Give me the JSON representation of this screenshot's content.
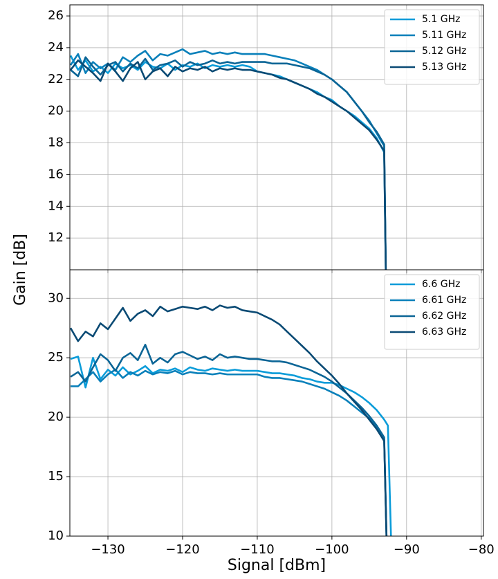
{
  "chart_data": [
    {
      "type": "line",
      "ylabel": "Gain [dB]",
      "x": [
        -135,
        -134,
        -133,
        -132,
        -131,
        -130,
        -129,
        -128,
        -127,
        -126,
        -125,
        -124,
        -123,
        -122,
        -121,
        -120,
        -119,
        -118,
        -117,
        -116,
        -115,
        -114,
        -113,
        -112,
        -111,
        -110,
        -109,
        -108,
        -107,
        -106,
        -105,
        -104,
        -103,
        -102,
        -101,
        -100,
        -99,
        -98,
        -97,
        -96,
        -95,
        -94,
        -93,
        -92.5,
        -92
      ],
      "xlim": [
        -135.1,
        -79.7
      ],
      "ylim": [
        10,
        26.7
      ],
      "yticks": [
        12,
        14,
        16,
        18,
        20,
        22,
        24,
        26
      ],
      "grid": true,
      "legend": "upper right",
      "series": [
        {
          "name": "5.1 GHz",
          "color": "#0b9cd9",
          "values": [
            23.5,
            22.6,
            23.2,
            22.5,
            22.8,
            22.4,
            23.0,
            22.7,
            22.9,
            22.6,
            23.1,
            22.8,
            22.7,
            23.0,
            22.6,
            22.9,
            22.8,
            23.0,
            22.7,
            22.9,
            22.8,
            22.9,
            22.8,
            22.9,
            22.8,
            22.5,
            22.4,
            22.3,
            22.2,
            22.0,
            21.8,
            21.6,
            21.4,
            21.2,
            20.9,
            20.7,
            20.3,
            20.0,
            19.7,
            19.3,
            18.9,
            18.3,
            17.4,
            0,
            null
          ]
        },
        {
          "name": "5.11 GHz",
          "color": "#0a80ba",
          "values": [
            22.9,
            23.6,
            22.4,
            23.1,
            22.7,
            23.0,
            22.6,
            23.4,
            23.1,
            23.5,
            23.8,
            23.2,
            23.6,
            23.5,
            23.7,
            23.9,
            23.6,
            23.7,
            23.8,
            23.6,
            23.7,
            23.6,
            23.7,
            23.6,
            23.6,
            23.6,
            23.6,
            23.5,
            23.4,
            23.3,
            23.2,
            23.0,
            22.8,
            22.6,
            22.3,
            22.0,
            21.6,
            21.2,
            20.6,
            20.0,
            19.4,
            18.6,
            17.8,
            0,
            null
          ]
        },
        {
          "name": "5.12 GHz",
          "color": "#0b6596",
          "values": [
            22.6,
            22.2,
            23.4,
            22.8,
            22.3,
            22.9,
            23.1,
            22.5,
            23.0,
            22.7,
            23.3,
            22.6,
            22.9,
            23.0,
            23.2,
            22.8,
            23.1,
            22.9,
            23.0,
            23.2,
            23.0,
            23.1,
            23.0,
            23.1,
            23.1,
            23.1,
            23.1,
            23.0,
            23.0,
            23.0,
            22.9,
            22.8,
            22.7,
            22.5,
            22.3,
            22.0,
            21.6,
            21.2,
            20.6,
            20.0,
            19.3,
            18.7,
            17.9,
            0,
            null
          ]
        },
        {
          "name": "5.13 GHz",
          "color": "#0a4a74",
          "values": [
            22.6,
            23.2,
            22.8,
            22.4,
            21.9,
            23.0,
            22.5,
            21.9,
            22.7,
            23.1,
            22.0,
            22.5,
            22.7,
            22.2,
            22.8,
            22.5,
            22.7,
            22.6,
            22.8,
            22.5,
            22.7,
            22.6,
            22.7,
            22.6,
            22.6,
            22.5,
            22.4,
            22.3,
            22.1,
            22.0,
            21.8,
            21.6,
            21.4,
            21.1,
            20.9,
            20.6,
            20.3,
            20.0,
            19.6,
            19.2,
            18.8,
            18.2,
            17.5,
            0,
            null
          ]
        }
      ]
    },
    {
      "type": "line",
      "xlabel": "Signal [dBm]",
      "x": [
        -135,
        -134,
        -133,
        -132,
        -131,
        -130,
        -129,
        -128,
        -127,
        -126,
        -125,
        -124,
        -123,
        -122,
        -121,
        -120,
        -119,
        -118,
        -117,
        -116,
        -115,
        -114,
        -113,
        -112,
        -111,
        -110,
        -109,
        -108,
        -107,
        -106,
        -105,
        -104,
        -103,
        -102,
        -101,
        -100,
        -99,
        -98,
        -97,
        -96,
        -95,
        -94,
        -93,
        -92.5,
        -92
      ],
      "xlim": [
        -135.1,
        -79.7
      ],
      "ylim": [
        10,
        32.4
      ],
      "yticks": [
        10,
        15,
        20,
        25,
        30
      ],
      "grid": true,
      "legend": "upper right",
      "xticks": [
        {
          "value": -130,
          "label": "−130"
        },
        {
          "value": -120,
          "label": "−120"
        },
        {
          "value": -110,
          "label": "−110"
        },
        {
          "value": -100,
          "label": "−100"
        },
        {
          "value": -90,
          "label": "−90"
        },
        {
          "value": -80,
          "label": "−80"
        }
      ],
      "series": [
        {
          "name": "6.6 GHz",
          "color": "#0b9cd9",
          "values": [
            24.9,
            25.1,
            22.5,
            25.0,
            23.2,
            24.0,
            23.5,
            24.2,
            23.6,
            23.9,
            24.3,
            23.7,
            24.0,
            23.9,
            24.1,
            23.8,
            24.2,
            24.0,
            23.9,
            24.1,
            24.0,
            23.9,
            24.0,
            23.9,
            23.9,
            23.9,
            23.8,
            23.7,
            23.7,
            23.6,
            23.5,
            23.3,
            23.2,
            23.0,
            22.9,
            22.9,
            22.7,
            22.4,
            22.1,
            21.7,
            21.2,
            20.6,
            19.8,
            19.3,
            8
          ]
        },
        {
          "name": "6.61 GHz",
          "color": "#0a80ba",
          "values": [
            22.6,
            22.6,
            23.2,
            23.8,
            23.0,
            23.6,
            24.0,
            23.3,
            23.8,
            23.5,
            23.9,
            23.6,
            23.8,
            23.7,
            23.9,
            23.6,
            23.8,
            23.7,
            23.7,
            23.6,
            23.7,
            23.6,
            23.6,
            23.6,
            23.6,
            23.6,
            23.4,
            23.3,
            23.3,
            23.2,
            23.1,
            23.0,
            22.8,
            22.6,
            22.4,
            22.1,
            21.8,
            21.4,
            20.9,
            20.4,
            19.9,
            19.2,
            18.2,
            5,
            null
          ]
        },
        {
          "name": "6.62 GHz",
          "color": "#0b6596",
          "values": [
            23.4,
            23.8,
            23.0,
            24.2,
            25.3,
            24.8,
            23.9,
            25.0,
            25.4,
            24.8,
            26.1,
            24.5,
            25.0,
            24.6,
            25.3,
            25.5,
            25.2,
            24.9,
            25.1,
            24.8,
            25.3,
            25.0,
            25.1,
            25.0,
            24.9,
            24.9,
            24.8,
            24.7,
            24.7,
            24.6,
            24.4,
            24.2,
            24.0,
            23.7,
            23.4,
            23.0,
            22.5,
            22.0,
            21.4,
            20.8,
            20.1,
            19.3,
            18.3,
            5,
            null
          ]
        },
        {
          "name": "6.63 GHz",
          "color": "#0a4a74",
          "values": [
            27.5,
            26.4,
            27.2,
            26.8,
            27.9,
            27.4,
            28.3,
            29.2,
            28.1,
            28.7,
            29.0,
            28.5,
            29.3,
            28.9,
            29.1,
            29.3,
            29.2,
            29.1,
            29.3,
            29.0,
            29.4,
            29.2,
            29.3,
            29.0,
            28.9,
            28.8,
            28.5,
            28.2,
            27.8,
            27.2,
            26.6,
            26.0,
            25.4,
            24.7,
            24.1,
            23.5,
            22.8,
            22.0,
            21.3,
            20.6,
            19.8,
            19.0,
            18.0,
            5,
            null
          ]
        }
      ]
    }
  ]
}
